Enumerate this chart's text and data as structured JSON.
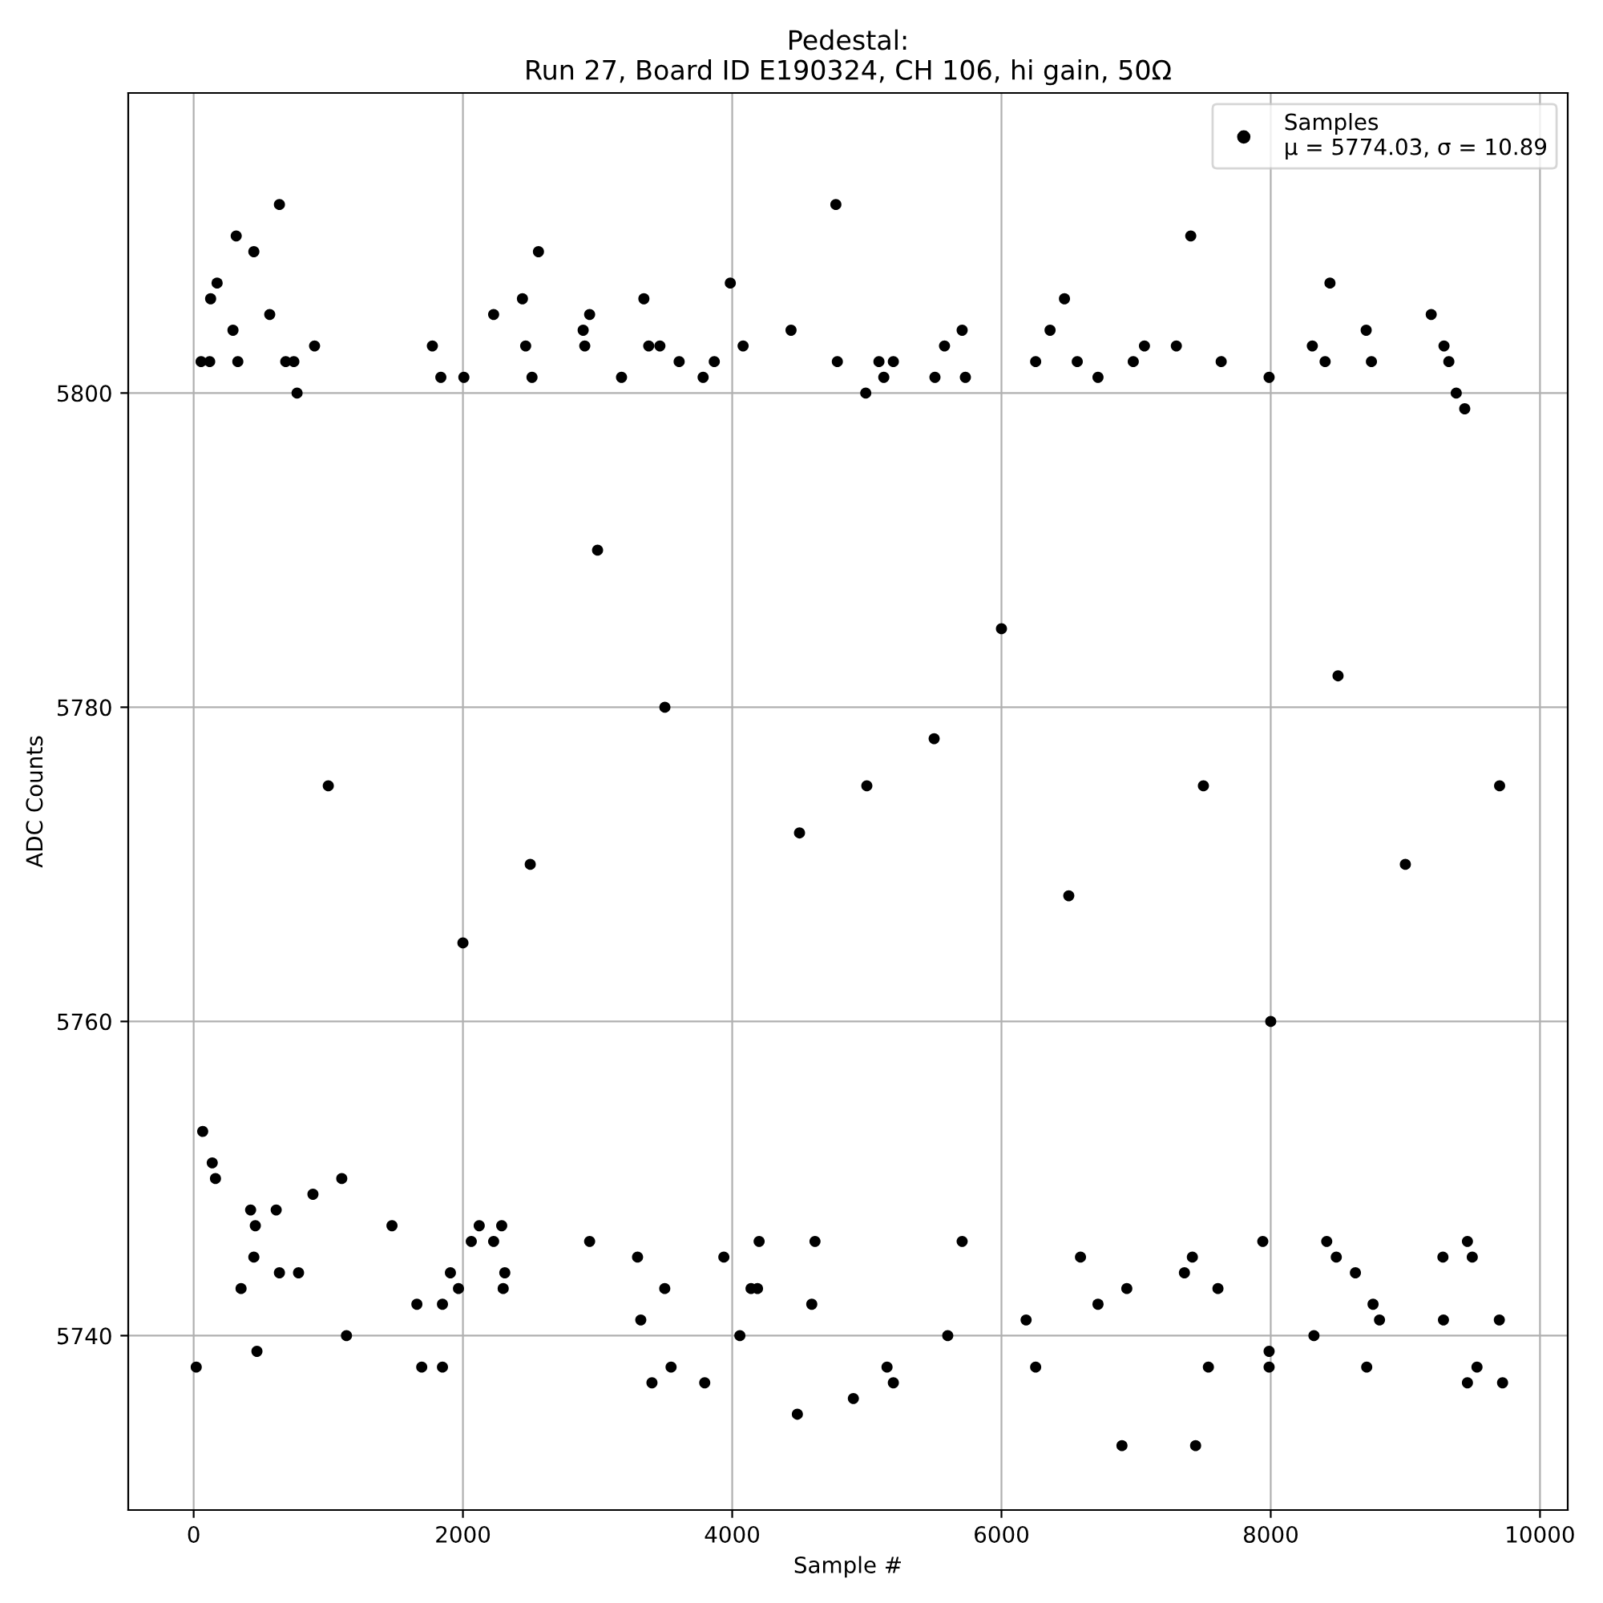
{
  "chart_data": {
    "type": "scatter",
    "title": "Pedestal:\nRun 27, Board ID E190324, CH 106, hi gain, 50Ω",
    "xlabel": "Sample #",
    "ylabel": "ADC Counts",
    "xlim": [
      -486,
      10206
    ],
    "ylim": [
      5728.9,
      5819.1
    ],
    "xticks": [
      0,
      2000,
      4000,
      6000,
      8000,
      10000
    ],
    "yticks": [
      5740,
      5760,
      5780,
      5800
    ],
    "grid": true,
    "legend": "top right",
    "marker": "circle",
    "series": [
      {
        "name": "Samples\nμ = 5774.03, σ = 10.89",
        "color": "#000000",
        "x": [
          55,
          119,
          126,
          174,
          316,
          292,
          328,
          447,
          565,
          637,
          684,
          744,
          898,
          768,
          1773,
          1836,
          2007,
          2228,
          2442,
          2466,
          2513,
          2561,
          2893,
          2905,
          2941,
          3178,
          3344,
          3380,
          3463,
          3606,
          3784,
          3867,
          3986,
          4081,
          4437,
          4770,
          4781,
          4992,
          5090,
          5197,
          5126,
          5506,
          5577,
          5708,
          5732,
          6254,
          6361,
          6468,
          6563,
          6717,
          6979,
          7062,
          7299,
          7406,
          7632,
          7988,
          8309,
          8404,
          8440,
          8709,
          8748,
          9192,
          9287,
          9323,
          9378,
          9441,
          19,
          67,
          138,
          162,
          352,
          423,
          447,
          458,
          470,
          613,
          637,
          779,
          886,
          1100,
          1135,
          1473,
          1658,
          1694,
          1848,
          1848,
          1907,
          1967,
          2062,
          2121,
          2228,
          2288,
          2299,
          2311,
          2941,
          3297,
          3321,
          3404,
          3499,
          3546,
          3796,
          3938,
          4057,
          4140,
          4188,
          4200,
          4484,
          4591,
          4615,
          4900,
          5150,
          5197,
          5601,
          5708,
          6183,
          6254,
          6587,
          6717,
          6895,
          6931,
          7359,
          7418,
          7442,
          7537,
          7608,
          7941,
          7988,
          7988,
          8321,
          8416,
          8487,
          8629,
          8713,
          8760,
          8808,
          9279,
          9283,
          9461,
          9461,
          9497,
          9532,
          9698,
          9722,
          1000,
          2500,
          3500,
          4500,
          5500,
          6500,
          7500,
          8500,
          9700,
          2000,
          6000,
          3000,
          8000,
          5000,
          9000
        ],
        "values": [
          5802,
          5802,
          5806,
          5807,
          5810,
          5804,
          5802,
          5809,
          5805,
          5812,
          5802,
          5802,
          5803,
          5800,
          5803,
          5801,
          5801,
          5805,
          5806,
          5803,
          5801,
          5809,
          5804,
          5803,
          5805,
          5801,
          5806,
          5803,
          5803,
          5802,
          5801,
          5802,
          5807,
          5803,
          5804,
          5812,
          5802,
          5800,
          5802,
          5802,
          5801,
          5801,
          5803,
          5804,
          5801,
          5802,
          5804,
          5806,
          5802,
          5801,
          5802,
          5803,
          5803,
          5810,
          5802,
          5801,
          5803,
          5802,
          5807,
          5804,
          5802,
          5805,
          5803,
          5802,
          5800,
          5799,
          5738,
          5753,
          5751,
          5750,
          5743,
          5748,
          5745,
          5747,
          5739,
          5748,
          5744,
          5744,
          5749,
          5750,
          5740,
          5747,
          5742,
          5738,
          5738,
          5742,
          5744,
          5743,
          5746,
          5747,
          5746,
          5747,
          5743,
          5744,
          5746,
          5745,
          5741,
          5737,
          5743,
          5738,
          5737,
          5745,
          5740,
          5743,
          5743,
          5746,
          5735,
          5742,
          5746,
          5736,
          5738,
          5737,
          5740,
          5746,
          5741,
          5738,
          5745,
          5742,
          5733,
          5743,
          5744,
          5745,
          5733,
          5738,
          5743,
          5746,
          5739,
          5738,
          5740,
          5746,
          5745,
          5744,
          5738,
          5742,
          5741,
          5745,
          5741,
          5737,
          5746,
          5745,
          5738,
          5741,
          5737,
          5775,
          5770,
          5780,
          5772,
          5778,
          5768,
          5775,
          5782,
          5775,
          5765,
          5785,
          5790,
          5760,
          5775,
          5770
        ]
      }
    ]
  }
}
